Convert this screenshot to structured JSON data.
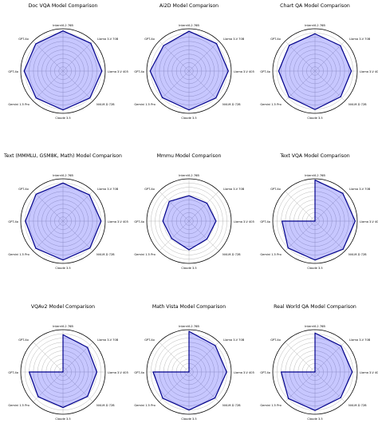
{
  "style": {
    "fill_color": "#0000ff",
    "fill_opacity": 0.22,
    "line_color": "#00008b",
    "grid_color": "#b0b0b0",
    "frame_color": "#000000"
  },
  "axes": [
    "InternVL2 76B",
    "Llama 3-V 70B",
    "Llama 3-V 405",
    "NVLM-D 72B",
    "Claude 3.5",
    "Gemini 1.5 Pro",
    "GPT-4o",
    "GPT-4o"
  ],
  "chart_data": [
    {
      "type": "radar",
      "title": "Doc VQA Model Comparison",
      "categories": [
        "InternVL2 76B",
        "Llama 3-V 70B",
        "Llama 3-V 405",
        "NVLM-D 72B",
        "Claude 3.5",
        "Gemini 1.5 Pro",
        "GPT-4o",
        "GPT-4o"
      ],
      "values": [
        0.95,
        0.93,
        0.92,
        0.9,
        0.92,
        0.9,
        0.92,
        0.91
      ],
      "rlim": [
        0,
        1
      ],
      "grid": true
    },
    {
      "type": "radar",
      "title": "Ai2D Model Comparison",
      "categories": [
        "InternVL2 76B",
        "Llama 3-V 70B",
        "Llama 3-V 405",
        "NVLM-D 72B",
        "Claude 3.5",
        "Gemini 1.5 Pro",
        "GPT-4o",
        "GPT-4o"
      ],
      "values": [
        0.94,
        0.92,
        0.93,
        0.9,
        0.92,
        0.89,
        0.92,
        0.85
      ],
      "rlim": [
        0,
        1
      ],
      "grid": true
    },
    {
      "type": "radar",
      "title": "Chart QA Model Comparison",
      "categories": [
        "InternVL2 76B",
        "Llama 3-V 70B",
        "Llama 3-V 405",
        "NVLM-D 72B",
        "Claude 3.5",
        "Gemini 1.5 Pro",
        "GPT-4o",
        "GPT-4o"
      ],
      "values": [
        0.88,
        0.85,
        0.86,
        0.86,
        0.91,
        0.87,
        0.86,
        0.86
      ],
      "rlim": [
        0,
        1
      ],
      "grid": true
    },
    {
      "type": "radar",
      "title": "Text (MMMLU, GSM8K, Math) Model Comparison",
      "categories": [
        "InternVL2 76B",
        "Llama 3-V 70B",
        "Llama 3-V 405",
        "NVLM-D 72B",
        "Claude 3.5",
        "Gemini 1.5 Pro",
        "GPT-4o",
        "GPT-4o"
      ],
      "values": [
        0.9,
        0.88,
        0.9,
        0.9,
        0.92,
        0.91,
        0.89,
        0.9
      ],
      "rlim": [
        0,
        1
      ],
      "grid": true
    },
    {
      "type": "radar",
      "title": "Mmmu Model Comparison",
      "categories": [
        "InternVL2 76B",
        "Llama 3-V 70B",
        "Llama 3-V 405",
        "NVLM-D 72B",
        "Claude 3.5",
        "Gemini 1.5 Pro",
        "GPT-4o",
        "GPT-4o"
      ],
      "values": [
        0.6,
        0.6,
        0.64,
        0.6,
        0.68,
        0.58,
        0.62,
        0.66
      ],
      "rlim": [
        0,
        1
      ],
      "grid": true
    },
    {
      "type": "radar",
      "title": "Text VQA Model Comparison",
      "categories": [
        "InternVL2 76B",
        "Llama 3-V 70B",
        "Llama 3-V 405",
        "NVLM-D 72B",
        "Claude 3.5",
        "Gemini 1.5 Pro",
        "GPT-4o",
        "GPT-4o"
      ],
      "values": [
        0.97,
        0.93,
        0.95,
        0.94,
        0.92,
        0.9,
        0.78,
        0.0
      ],
      "rlim": [
        0,
        1
      ],
      "grid": true
    },
    {
      "type": "radar",
      "title": "VQAv2 Model Comparison",
      "categories": [
        "InternVL2 76B",
        "Llama 3-V 70B",
        "Llama 3-V 405",
        "NVLM-D 72B",
        "Claude 3.5",
        "Gemini 1.5 Pro",
        "GPT-4o",
        "GPT-4o"
      ],
      "values": [
        0.88,
        0.82,
        0.8,
        0.82,
        0.84,
        0.83,
        0.8,
        0.0
      ],
      "rlim": [
        0,
        1
      ],
      "grid": true
    },
    {
      "type": "radar",
      "title": "Math Vista Model Comparison",
      "categories": [
        "InternVL2 76B",
        "Llama 3-V 70B",
        "Llama 3-V 405",
        "NVLM-D 72B",
        "Claude 3.5",
        "Gemini 1.5 Pro",
        "GPT-4o",
        "GPT-4o"
      ],
      "values": [
        0.96,
        0.88,
        0.89,
        0.87,
        0.9,
        0.88,
        0.85,
        0.0
      ],
      "rlim": [
        0,
        1
      ],
      "grid": true
    },
    {
      "type": "radar",
      "title": "Real World QA Model Comparison",
      "categories": [
        "InternVL2 76B",
        "Llama 3-V 70B",
        "Llama 3-V 405",
        "NVLM-D 72B",
        "Claude 3.5",
        "Gemini 1.5 Pro",
        "GPT-4o",
        "GPT-4o"
      ],
      "values": [
        0.92,
        0.87,
        0.88,
        0.86,
        0.91,
        0.89,
        0.8,
        0.0
      ],
      "rlim": [
        0,
        1
      ],
      "grid": true
    }
  ]
}
